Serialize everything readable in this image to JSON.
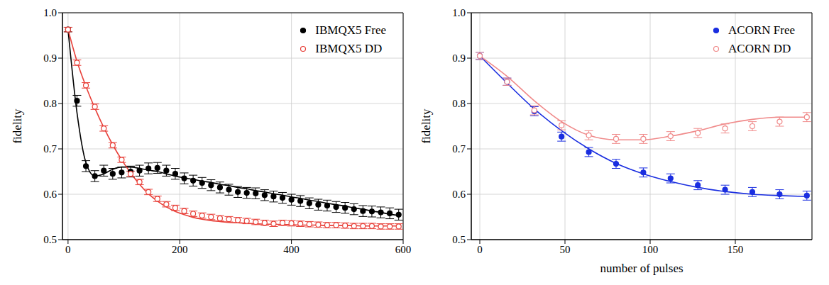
{
  "chart_data": [
    {
      "type": "scatter",
      "ylabel": "fidelity",
      "grid": true,
      "legend": "upper right",
      "xlim": [
        -10,
        600
      ],
      "xticks": [
        0,
        200,
        400,
        600
      ],
      "ylim": [
        0.5,
        1
      ],
      "yticks": [
        0.5,
        0.6,
        0.7,
        0.8,
        0.9,
        {
          "value": 1,
          "label": "1.0"
        }
      ],
      "x": [
        0,
        16,
        32,
        48,
        64,
        80,
        96,
        112,
        128,
        144,
        160,
        176,
        192,
        208,
        224,
        240,
        256,
        272,
        288,
        304,
        320,
        336,
        352,
        368,
        384,
        400,
        416,
        432,
        448,
        464,
        480,
        496,
        512,
        528,
        544,
        560,
        576,
        592
      ],
      "series": [
        {
          "name": "IBMQX5 Free",
          "color": "#000000",
          "marker": "circle",
          "values": [
            0.963,
            0.806,
            0.662,
            0.64,
            0.652,
            0.645,
            0.648,
            0.65,
            0.652,
            0.657,
            0.658,
            0.652,
            0.645,
            0.635,
            0.63,
            0.625,
            0.62,
            0.615,
            0.61,
            0.605,
            0.603,
            0.602,
            0.598,
            0.595,
            0.592,
            0.588,
            0.585,
            0.58,
            0.577,
            0.575,
            0.572,
            0.57,
            0.567,
            0.563,
            0.562,
            0.56,
            0.558,
            0.555
          ],
          "errors": [
            0.005,
            0.012,
            0.012,
            0.012,
            0.012,
            0.012,
            0.012,
            0.012,
            0.012,
            0.012,
            0.012,
            0.012,
            0.012,
            0.012,
            0.012,
            0.012,
            0.012,
            0.012,
            0.012,
            0.012,
            0.012,
            0.012,
            0.012,
            0.012,
            0.012,
            0.012,
            0.012,
            0.012,
            0.012,
            0.012,
            0.012,
            0.012,
            0.012,
            0.012,
            0.012,
            0.012,
            0.012,
            0.012
          ],
          "fit": [
            0.963,
            0.78,
            0.67,
            0.64,
            0.645,
            0.655,
            0.66,
            0.66,
            0.657,
            0.653,
            0.65,
            0.645,
            0.64,
            0.636,
            0.633,
            0.629,
            0.626,
            0.622,
            0.619,
            0.615,
            0.612,
            0.608,
            0.605,
            0.601,
            0.598,
            0.594,
            0.591,
            0.587,
            0.584,
            0.58,
            0.577,
            0.574,
            0.57,
            0.567,
            0.563,
            0.56,
            0.556,
            0.553
          ]
        },
        {
          "name": "IBMQX5 DD",
          "color": "#e8413a",
          "marker": "open_circle",
          "values": [
            0.963,
            0.89,
            0.84,
            0.793,
            0.745,
            0.708,
            0.676,
            0.645,
            0.627,
            0.605,
            0.59,
            0.578,
            0.57,
            0.563,
            0.557,
            0.553,
            0.55,
            0.547,
            0.545,
            0.543,
            0.541,
            0.539,
            0.537,
            0.535,
            0.537,
            0.536,
            0.535,
            0.534,
            0.533,
            0.532,
            0.532,
            0.531,
            0.53,
            0.53,
            0.53,
            0.529,
            0.529,
            0.529
          ],
          "errors": [
            0.005,
            0.006,
            0.006,
            0.006,
            0.006,
            0.006,
            0.006,
            0.006,
            0.006,
            0.006,
            0.006,
            0.006,
            0.006,
            0.006,
            0.006,
            0.006,
            0.006,
            0.006,
            0.006,
            0.006,
            0.006,
            0.006,
            0.006,
            0.006,
            0.006,
            0.006,
            0.006,
            0.006,
            0.006,
            0.006,
            0.006,
            0.006,
            0.006,
            0.006,
            0.006,
            0.006,
            0.006,
            0.006
          ],
          "fit": [
            0.963,
            0.893,
            0.838,
            0.79,
            0.747,
            0.709,
            0.676,
            0.647,
            0.622,
            0.601,
            0.585,
            0.572,
            0.562,
            0.555,
            0.549,
            0.545,
            0.542,
            0.54,
            0.538,
            0.537,
            0.536,
            0.535,
            0.534,
            0.534,
            0.533,
            0.533,
            0.532,
            0.532,
            0.532,
            0.531,
            0.531,
            0.531,
            0.531,
            0.53,
            0.53,
            0.53,
            0.53,
            0.53
          ]
        }
      ]
    },
    {
      "type": "scatter",
      "xlabel": "number of pulses",
      "ylabel": "fidelity",
      "grid": true,
      "legend": "upper right",
      "xlim": [
        -5,
        195
      ],
      "xticks": [
        0,
        50,
        100,
        150
      ],
      "ylim": [
        0.5,
        1
      ],
      "yticks": [
        0.5,
        0.6,
        0.7,
        0.8,
        0.9,
        {
          "value": 1,
          "label": "1.0"
        }
      ],
      "x": [
        0,
        16,
        32,
        48,
        64,
        80,
        96,
        112,
        128,
        144,
        160,
        176,
        192
      ],
      "series": [
        {
          "name": "ACORN Free",
          "color": "#1a2ee0",
          "marker": "circle",
          "values": [
            0.905,
            0.848,
            0.783,
            0.727,
            0.693,
            0.667,
            0.648,
            0.635,
            0.62,
            0.61,
            0.605,
            0.6,
            0.597
          ],
          "errors": [
            0.008,
            0.008,
            0.01,
            0.01,
            0.01,
            0.01,
            0.01,
            0.01,
            0.01,
            0.01,
            0.01,
            0.01,
            0.01
          ],
          "fit": [
            0.905,
            0.845,
            0.788,
            0.74,
            0.7,
            0.668,
            0.645,
            0.628,
            0.615,
            0.606,
            0.6,
            0.597,
            0.595
          ]
        },
        {
          "name": "ACORN DD",
          "color": "#f08a8a",
          "marker": "open_circle",
          "values": [
            0.905,
            0.848,
            0.785,
            0.752,
            0.73,
            0.722,
            0.722,
            0.728,
            0.735,
            0.745,
            0.75,
            0.76,
            0.77
          ],
          "errors": [
            0.008,
            0.008,
            0.01,
            0.01,
            0.01,
            0.01,
            0.01,
            0.01,
            0.01,
            0.01,
            0.01,
            0.01,
            0.01
          ],
          "fit": [
            0.905,
            0.86,
            0.806,
            0.76,
            0.73,
            0.72,
            0.72,
            0.728,
            0.74,
            0.755,
            0.765,
            0.77,
            0.77
          ]
        }
      ]
    }
  ]
}
